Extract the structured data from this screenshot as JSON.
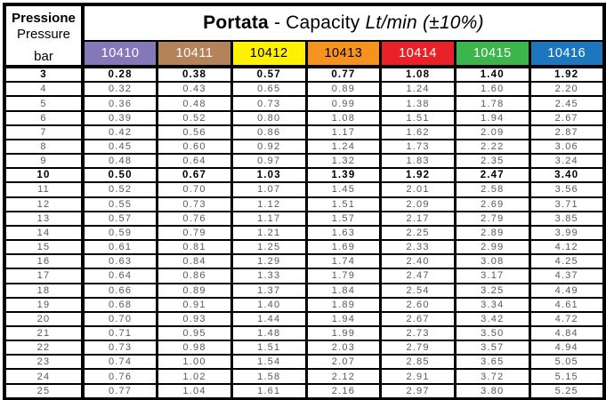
{
  "title": {
    "portata": "Portata",
    "capacity": " - Capacity ",
    "unit": "Lt/min (±10%)"
  },
  "pressure_header": {
    "line1": "Pressione",
    "line2": "Pressure",
    "unit": "bar"
  },
  "columns": [
    {
      "label": "10410",
      "bg": "#8478B8",
      "fg": "#FFFFFF"
    },
    {
      "label": "10411",
      "bg": "#B5835A",
      "fg": "#FFFFFF"
    },
    {
      "label": "10412",
      "bg": "#FFF200",
      "fg": "#000000"
    },
    {
      "label": "10413",
      "bg": "#F6921E",
      "fg": "#000000"
    },
    {
      "label": "10414",
      "bg": "#E92128",
      "fg": "#FFFFFF"
    },
    {
      "label": "10415",
      "bg": "#3CB54A",
      "fg": "#FFFFFF"
    },
    {
      "label": "10416",
      "bg": "#1C77BE",
      "fg": "#FFFFFF"
    }
  ],
  "rows": [
    {
      "bar": "3",
      "bold": true,
      "values": [
        "0.28",
        "0.38",
        "0.57",
        "0.77",
        "1.08",
        "1.40",
        "1.92"
      ]
    },
    {
      "bar": "4",
      "bold": false,
      "values": [
        "0.32",
        "0.43",
        "0.65",
        "0.89",
        "1.24",
        "1.60",
        "2.20"
      ]
    },
    {
      "bar": "5",
      "bold": false,
      "values": [
        "0.36",
        "0.48",
        "0.73",
        "0.99",
        "1.38",
        "1.78",
        "2.45"
      ]
    },
    {
      "bar": "6",
      "bold": false,
      "values": [
        "0.39",
        "0.52",
        "0.80",
        "1.08",
        "1.51",
        "1.94",
        "2.67"
      ]
    },
    {
      "bar": "7",
      "bold": false,
      "values": [
        "0.42",
        "0.56",
        "0.86",
        "1.17",
        "1.62",
        "2.09",
        "2.87"
      ]
    },
    {
      "bar": "8",
      "bold": false,
      "values": [
        "0.45",
        "0.60",
        "0.92",
        "1.24",
        "1.73",
        "2.22",
        "3.06"
      ]
    },
    {
      "bar": "9",
      "bold": false,
      "values": [
        "0.48",
        "0.64",
        "0.97",
        "1.32",
        "1.83",
        "2.35",
        "3.24"
      ]
    },
    {
      "bar": "10",
      "bold": true,
      "values": [
        "0.50",
        "0.67",
        "1.03",
        "1.39",
        "1.92",
        "2.47",
        "3.40"
      ]
    },
    {
      "bar": "11",
      "bold": false,
      "values": [
        "0.52",
        "0.70",
        "1.07",
        "1.45",
        "2.01",
        "2.58",
        "3.56"
      ]
    },
    {
      "bar": "12",
      "bold": false,
      "values": [
        "0.55",
        "0.73",
        "1.12",
        "1.51",
        "2.09",
        "2.69",
        "3.71"
      ]
    },
    {
      "bar": "13",
      "bold": false,
      "values": [
        "0.57",
        "0.76",
        "1.17",
        "1.57",
        "2.17",
        "2.79",
        "3.85"
      ]
    },
    {
      "bar": "14",
      "bold": false,
      "values": [
        "0.59",
        "0.79",
        "1.21",
        "1.63",
        "2.25",
        "2.89",
        "3.99"
      ]
    },
    {
      "bar": "15",
      "bold": false,
      "values": [
        "0.61",
        "0.81",
        "1.25",
        "1.69",
        "2.33",
        "2.99",
        "4.12"
      ]
    },
    {
      "bar": "16",
      "bold": false,
      "values": [
        "0.63",
        "0.84",
        "1.29",
        "1.74",
        "2.40",
        "3.08",
        "4.25"
      ]
    },
    {
      "bar": "17",
      "bold": false,
      "values": [
        "0.64",
        "0.86",
        "1.33",
        "1.79",
        "2.47",
        "3.17",
        "4.37"
      ]
    },
    {
      "bar": "18",
      "bold": false,
      "values": [
        "0.66",
        "0.89",
        "1.37",
        "1.84",
        "2.54",
        "3.25",
        "4.49"
      ]
    },
    {
      "bar": "19",
      "bold": false,
      "values": [
        "0.68",
        "0.91",
        "1.40",
        "1.89",
        "2.60",
        "3.34",
        "4.61"
      ]
    },
    {
      "bar": "20",
      "bold": false,
      "values": [
        "0.70",
        "0.93",
        "1.44",
        "1.94",
        "2.67",
        "3.42",
        "4.72"
      ]
    },
    {
      "bar": "21",
      "bold": false,
      "values": [
        "0.71",
        "0.95",
        "1.48",
        "1.99",
        "2.73",
        "3.50",
        "4.84"
      ]
    },
    {
      "bar": "22",
      "bold": false,
      "values": [
        "0.73",
        "0.98",
        "1.51",
        "2.03",
        "2.79",
        "3.57",
        "4.94"
      ]
    },
    {
      "bar": "23",
      "bold": false,
      "values": [
        "0.74",
        "1.00",
        "1.54",
        "2.07",
        "2.85",
        "3.65",
        "5.05"
      ]
    },
    {
      "bar": "24",
      "bold": false,
      "values": [
        "0.76",
        "1.02",
        "1.58",
        "2.12",
        "2.91",
        "3.72",
        "5.15"
      ]
    },
    {
      "bar": "25",
      "bold": false,
      "values": [
        "0.77",
        "1.04",
        "1.61",
        "2.16",
        "2.97",
        "3.80",
        "5.25"
      ]
    }
  ]
}
